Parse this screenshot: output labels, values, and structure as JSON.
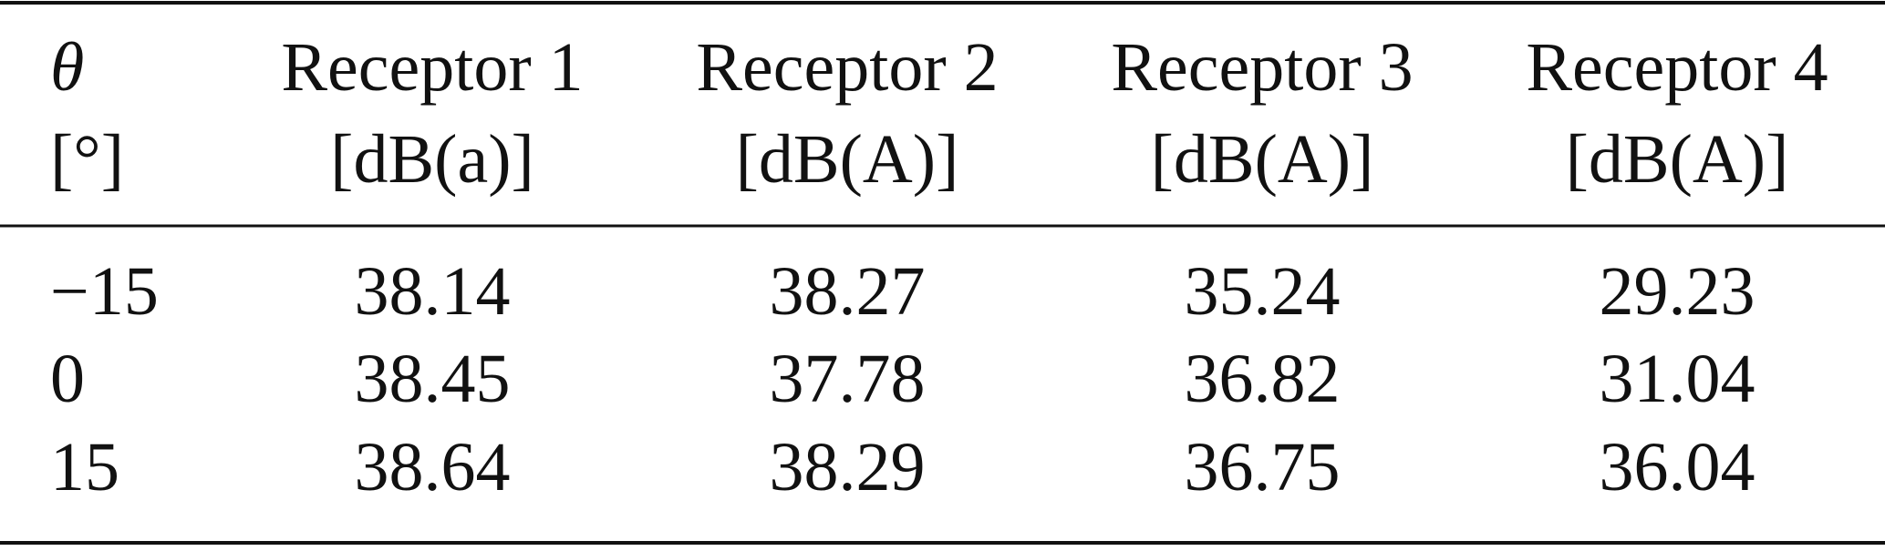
{
  "table": {
    "header": [
      [
        "θ",
        "[°]"
      ],
      [
        "Receptor 1",
        "[dB(a)]"
      ],
      [
        "Receptor 2",
        "[dB(A)]"
      ],
      [
        "Receptor 3",
        "[dB(A)]"
      ],
      [
        "Receptor 4",
        "[dB(A)]"
      ]
    ],
    "rows": [
      [
        "−15",
        "38.14",
        "38.27",
        "35.24",
        "29.23"
      ],
      [
        "0",
        "38.45",
        "37.78",
        "36.82",
        "31.04"
      ],
      [
        "15",
        "38.64",
        "38.29",
        "36.75",
        "36.04"
      ]
    ]
  }
}
